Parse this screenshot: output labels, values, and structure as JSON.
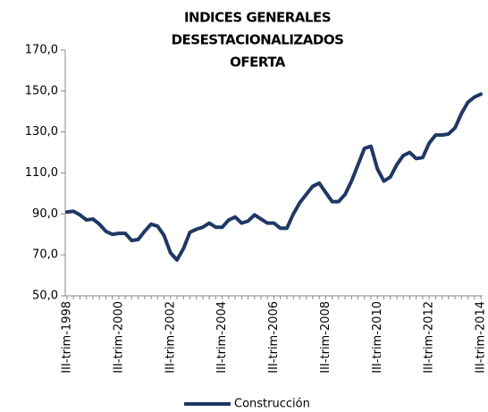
{
  "chart_data": {
    "type": "line",
    "title": [
      "INDICES GENERALES",
      "DESESTACIONALIZADOS",
      "OFERTA"
    ],
    "categories": [
      "III-trim-1998",
      null,
      null,
      null,
      null,
      null,
      null,
      null,
      "III-trim-2000",
      null,
      null,
      null,
      null,
      null,
      null,
      null,
      "III-trim-2002",
      null,
      null,
      null,
      null,
      null,
      null,
      null,
      "III-trim-2004",
      null,
      null,
      null,
      null,
      null,
      null,
      null,
      "III-trim-2006",
      null,
      null,
      null,
      null,
      null,
      null,
      null,
      "III-trim-2008",
      null,
      null,
      null,
      null,
      null,
      null,
      null,
      "III-trim-2010",
      null,
      null,
      null,
      null,
      null,
      null,
      null,
      "III-trim-2012",
      null,
      null,
      null,
      null,
      null,
      null,
      null,
      "III-trim-2014"
    ],
    "series": [
      {
        "name": "Construcción",
        "color": "#1f3864",
        "values": [
          90.9,
          91.3,
          89.5,
          87,
          87.5,
          85,
          81.5,
          80,
          80.5,
          80.5,
          77,
          77.5,
          81.5,
          85,
          84,
          79.5,
          71,
          67.5,
          73,
          81,
          82.5,
          83.5,
          85.5,
          83.5,
          83.5,
          87,
          88.5,
          85.5,
          86.5,
          89.5,
          87.5,
          85.5,
          85.5,
          83,
          83,
          90,
          95.5,
          99.5,
          103.5,
          105,
          100.5,
          96,
          96,
          99.5,
          106,
          114,
          122,
          123,
          112,
          106,
          108,
          114,
          118.5,
          120,
          117,
          117.5,
          124.5,
          128.5,
          128.5,
          129,
          132,
          139,
          144.5,
          147,
          148.5
        ]
      }
    ],
    "ylim": [
      50,
      170
    ],
    "yticks": [
      {
        "value": 50,
        "label": "50,0"
      },
      {
        "value": 70,
        "label": "70,0"
      },
      {
        "value": 90,
        "label": "90,0"
      },
      {
        "value": 110,
        "label": "110,0"
      },
      {
        "value": 130,
        "label": "130,0"
      },
      {
        "value": 150,
        "label": "150,0"
      },
      {
        "value": 170,
        "label": "170,0"
      }
    ],
    "grid": false,
    "legend": "bottom"
  }
}
